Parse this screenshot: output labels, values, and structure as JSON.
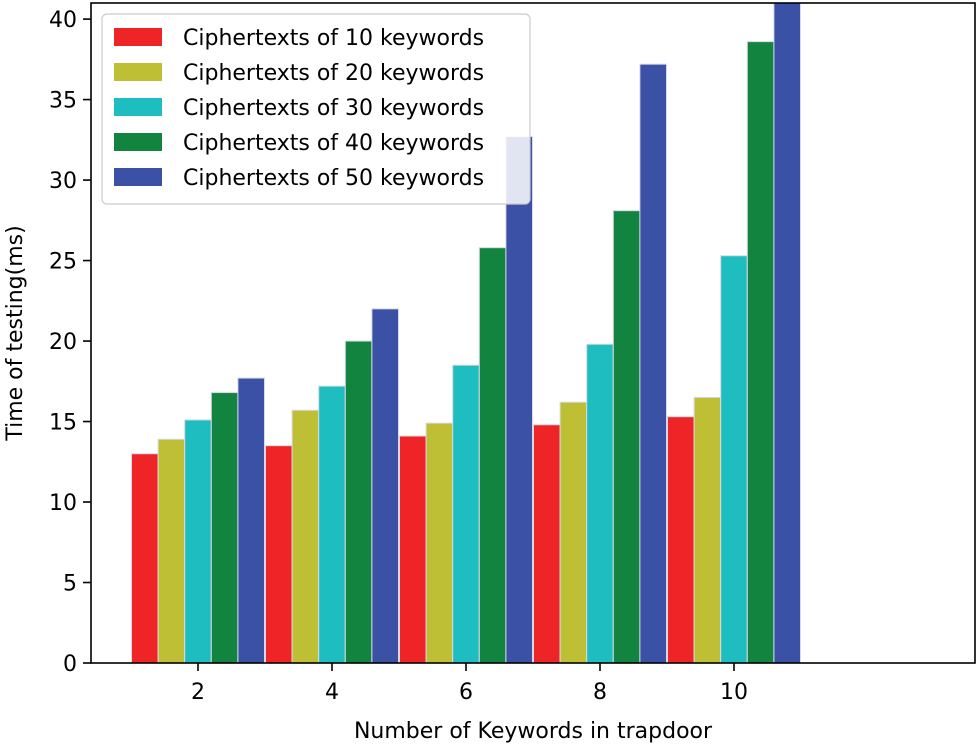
{
  "chart_data": {
    "type": "bar",
    "title": "",
    "xlabel": "Number of Keywords in trapdoor",
    "ylabel": "Time of testing(ms)",
    "categories": [
      "2",
      "4",
      "6",
      "8",
      "10"
    ],
    "ylim": [
      0,
      41
    ],
    "yticks": [
      0,
      5,
      10,
      15,
      20,
      25,
      30,
      35,
      40
    ],
    "grid": false,
    "legend_position": "upper-left",
    "series": [
      {
        "name": "Ciphertexts of 10 keywords",
        "color": "#ee2427",
        "values": [
          13.0,
          13.5,
          14.1,
          14.8,
          15.3
        ]
      },
      {
        "name": "Ciphertexts of 20 keywords",
        "color": "#bfbf35",
        "values": [
          13.9,
          15.7,
          14.9,
          16.2,
          16.5
        ]
      },
      {
        "name": "Ciphertexts of 30 keywords",
        "color": "#1ebec0",
        "values": [
          15.1,
          17.2,
          18.5,
          19.8,
          25.3
        ]
      },
      {
        "name": "Ciphertexts of 40 keywords",
        "color": "#12843f",
        "values": [
          16.8,
          20.0,
          25.8,
          28.1,
          38.6
        ]
      },
      {
        "name": "Ciphertexts of 50 keywords",
        "color": "#3a51a5",
        "values": [
          17.7,
          22.0,
          32.7,
          37.2,
          41.0
        ]
      }
    ]
  }
}
